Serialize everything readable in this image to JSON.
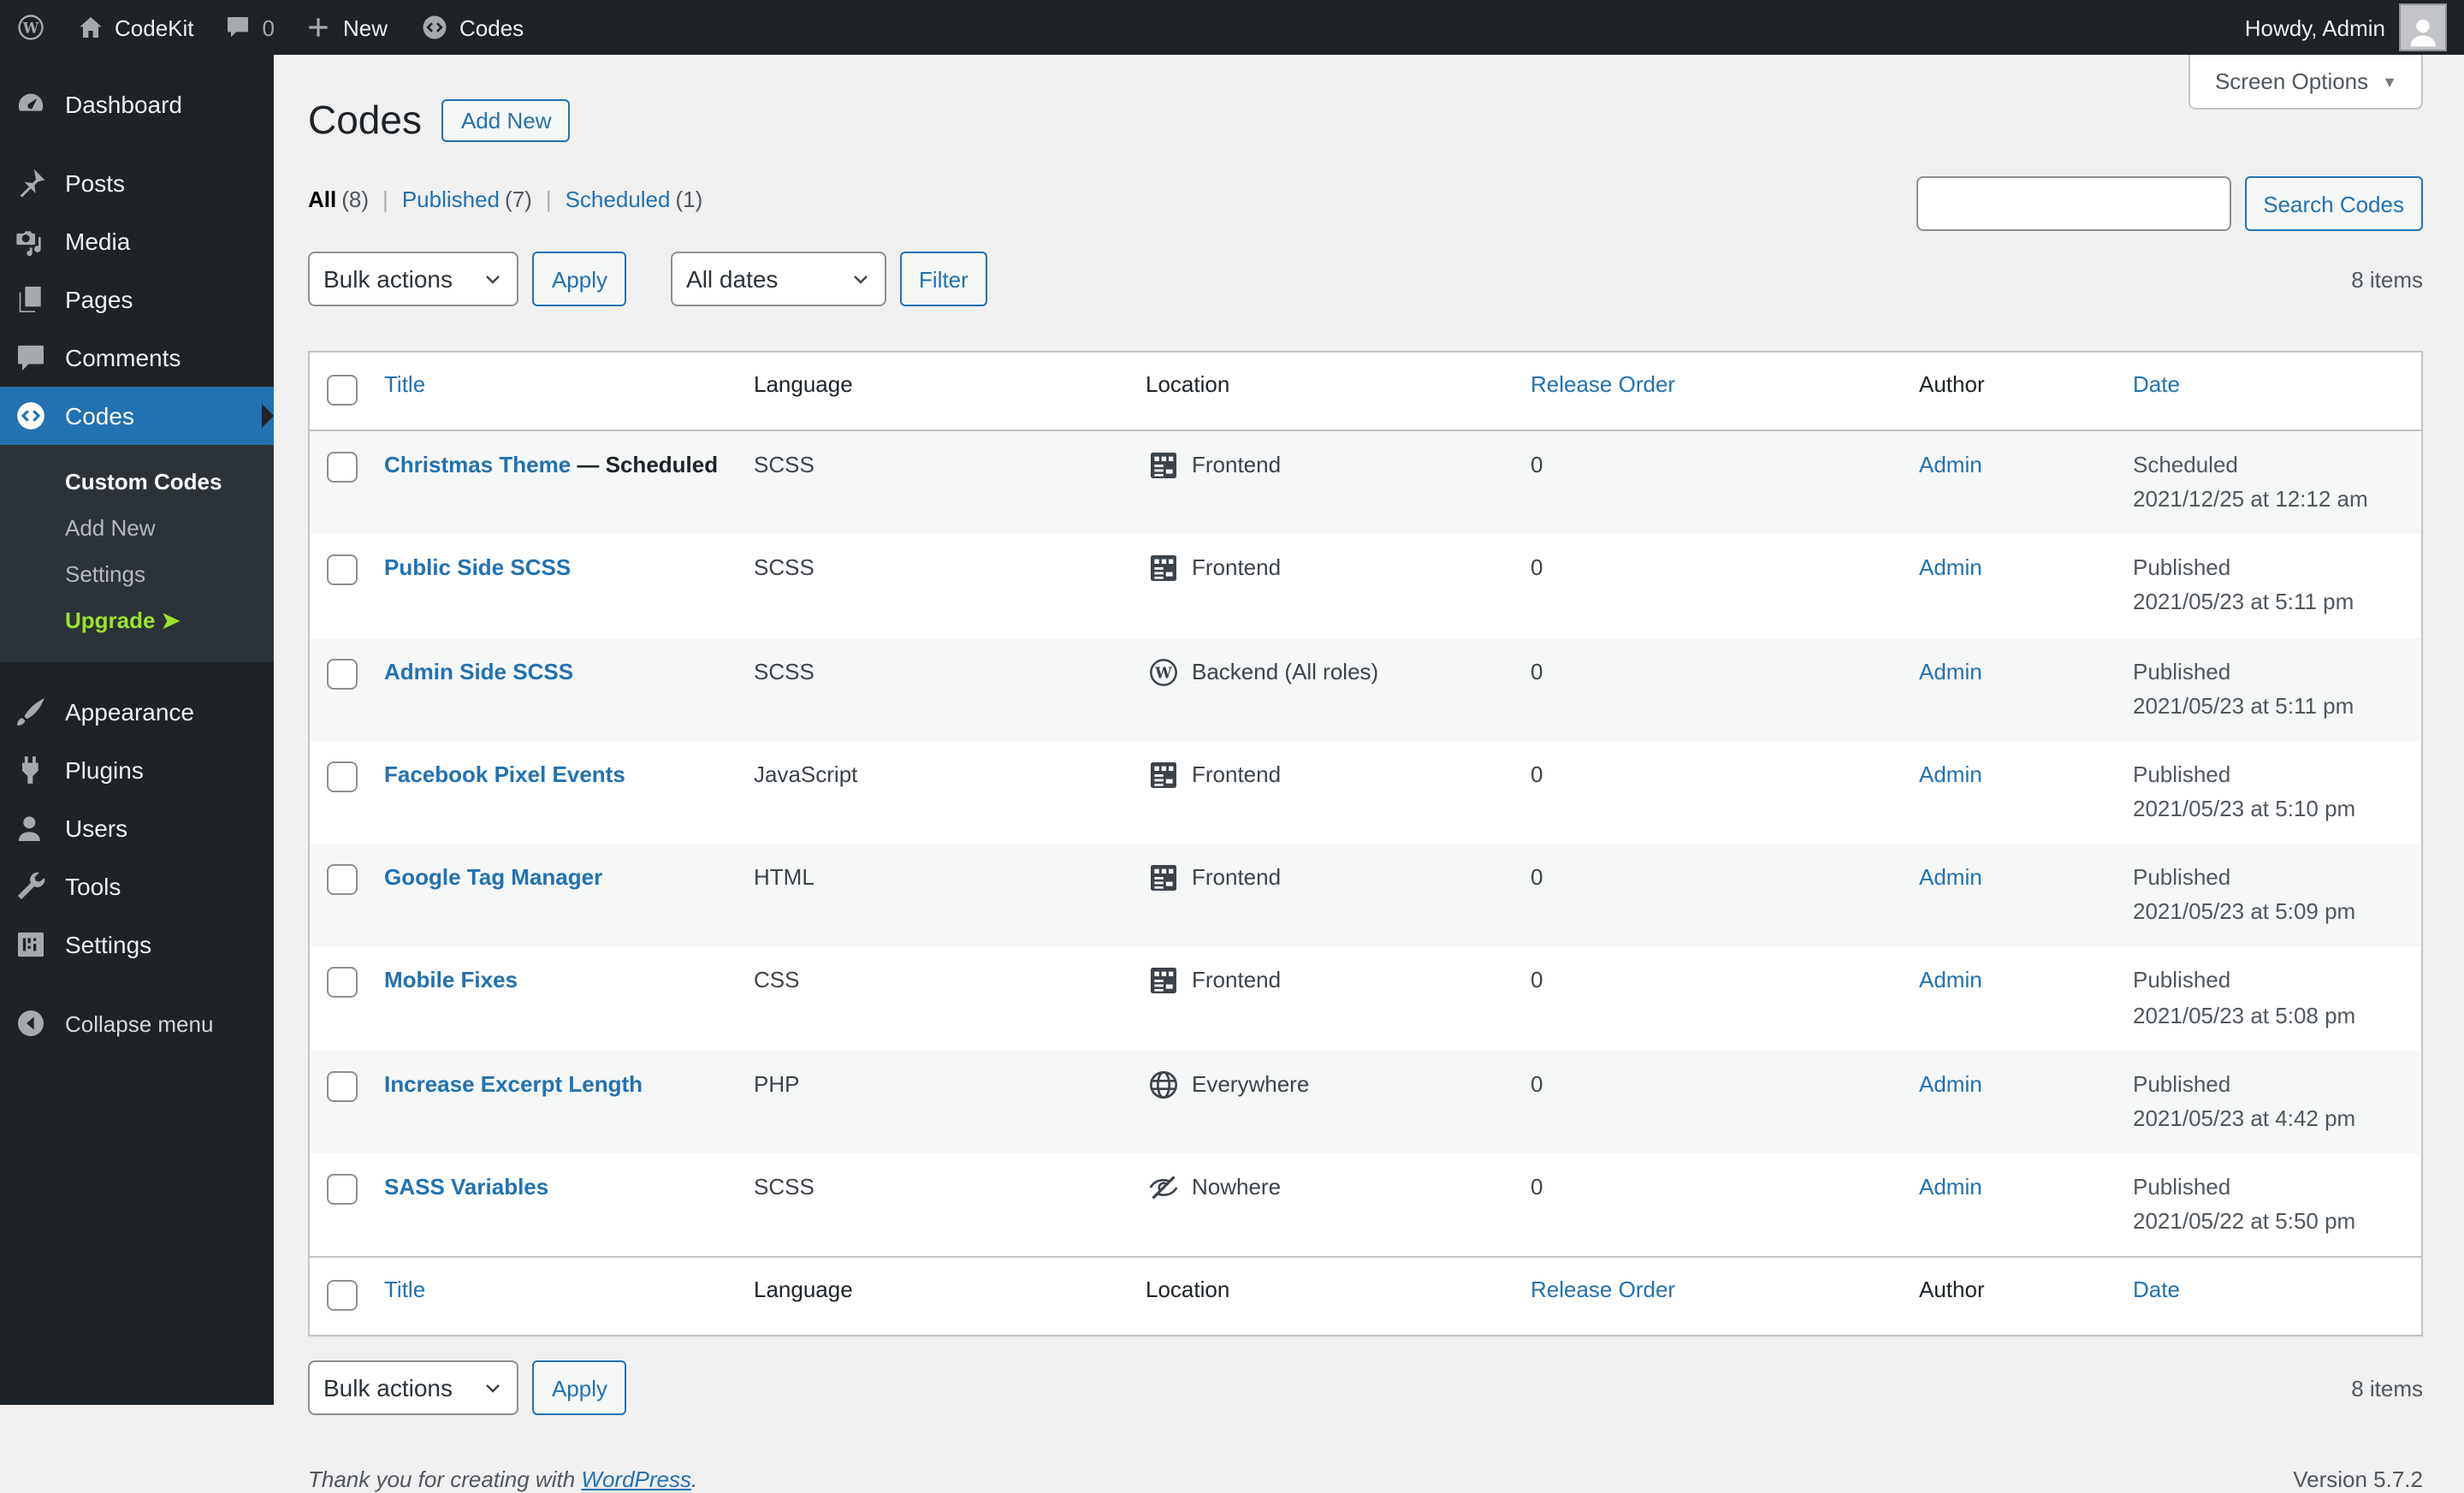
{
  "colors": {
    "accent": "#2271b1",
    "adminbar_bg": "#1d2327",
    "submenu_bg": "#2c3338",
    "content_bg": "#f0f0f1",
    "stripe": "#f6f7f7",
    "upgrade_green": "#9ce22e"
  },
  "admin_bar": {
    "site_name": "CodeKit",
    "comments_count": "0",
    "new_label": "New",
    "codes_label": "Codes",
    "howdy": "Howdy, Admin"
  },
  "sidebar": {
    "menu": [
      {
        "type": "item",
        "label": "Dashboard",
        "icon": "dashboard-icon"
      },
      {
        "type": "separator"
      },
      {
        "type": "item",
        "label": "Posts",
        "icon": "pushpin-icon"
      },
      {
        "type": "item",
        "label": "Media",
        "icon": "media-icon"
      },
      {
        "type": "item",
        "label": "Pages",
        "icon": "pages-icon"
      },
      {
        "type": "item",
        "label": "Comments",
        "icon": "comments-icon"
      },
      {
        "type": "item",
        "label": "Codes",
        "icon": "code-icon",
        "active": true,
        "submenu": [
          {
            "label": "Custom Codes",
            "current": true
          },
          {
            "label": "Add New"
          },
          {
            "label": "Settings"
          },
          {
            "label": "Upgrade",
            "highlight": true,
            "arrow": "➤"
          }
        ]
      },
      {
        "type": "separator"
      },
      {
        "type": "item",
        "label": "Appearance",
        "icon": "appearance-icon"
      },
      {
        "type": "item",
        "label": "Plugins",
        "icon": "plugins-icon"
      },
      {
        "type": "item",
        "label": "Users",
        "icon": "users-icon"
      },
      {
        "type": "item",
        "label": "Tools",
        "icon": "tools-icon"
      },
      {
        "type": "item",
        "label": "Settings",
        "icon": "settings-icon"
      },
      {
        "type": "separator"
      },
      {
        "type": "item",
        "label": "Collapse menu",
        "icon": "collapse-icon",
        "collapse": true
      }
    ]
  },
  "screen_options_label": "Screen Options",
  "page": {
    "title": "Codes",
    "add_new_label": "Add New",
    "filters": [
      {
        "label": "All",
        "count": "(8)",
        "current": true
      },
      {
        "label": "Published",
        "count": "(7)"
      },
      {
        "label": "Scheduled",
        "count": "(1)"
      }
    ],
    "search_button": "Search Codes",
    "search_value": "",
    "items_count": "8 items"
  },
  "toolbar": {
    "bulk_actions_label": "Bulk actions",
    "apply_label": "Apply",
    "dates_filter_label": "All dates",
    "filter_label": "Filter"
  },
  "table": {
    "columns": [
      {
        "label": "Title",
        "sortable": true
      },
      {
        "label": "Language",
        "sortable": false
      },
      {
        "label": "Location",
        "sortable": false
      },
      {
        "label": "Release Order",
        "sortable": true
      },
      {
        "label": "Author",
        "sortable": false
      },
      {
        "label": "Date",
        "sortable": true
      }
    ],
    "rows": [
      {
        "title": "Christmas Theme",
        "title_suffix": " — Scheduled",
        "language": "SCSS",
        "location": {
          "icon": "frontend-layout-icon",
          "label": "Frontend"
        },
        "release_order": "0",
        "author": "Admin",
        "date_status": "Scheduled",
        "date_value": "2021/12/25 at 12:12 am"
      },
      {
        "title": "Public Side SCSS",
        "title_suffix": "",
        "language": "SCSS",
        "location": {
          "icon": "frontend-layout-icon",
          "label": "Frontend"
        },
        "release_order": "0",
        "author": "Admin",
        "date_status": "Published",
        "date_value": "2021/05/23 at 5:11 pm"
      },
      {
        "title": "Admin Side SCSS",
        "title_suffix": "",
        "language": "SCSS",
        "location": {
          "icon": "wordpress-logo-icon",
          "label": "Backend (All roles)"
        },
        "release_order": "0",
        "author": "Admin",
        "date_status": "Published",
        "date_value": "2021/05/23 at 5:11 pm"
      },
      {
        "title": "Facebook Pixel Events",
        "title_suffix": "",
        "language": "JavaScript",
        "location": {
          "icon": "frontend-layout-icon",
          "label": "Frontend"
        },
        "release_order": "0",
        "author": "Admin",
        "date_status": "Published",
        "date_value": "2021/05/23 at 5:10 pm"
      },
      {
        "title": "Google Tag Manager",
        "title_suffix": "",
        "language": "HTML",
        "location": {
          "icon": "frontend-layout-icon",
          "label": "Frontend"
        },
        "release_order": "0",
        "author": "Admin",
        "date_status": "Published",
        "date_value": "2021/05/23 at 5:09 pm"
      },
      {
        "title": "Mobile Fixes",
        "title_suffix": "",
        "language": "CSS",
        "location": {
          "icon": "frontend-layout-icon",
          "label": "Frontend"
        },
        "release_order": "0",
        "author": "Admin",
        "date_status": "Published",
        "date_value": "2021/05/23 at 5:08 pm"
      },
      {
        "title": "Increase Excerpt Length",
        "title_suffix": "",
        "language": "PHP",
        "location": {
          "icon": "globe-icon",
          "label": "Everywhere"
        },
        "release_order": "0",
        "author": "Admin",
        "date_status": "Published",
        "date_value": "2021/05/23 at 4:42 pm"
      },
      {
        "title": "SASS Variables",
        "title_suffix": "",
        "language": "SCSS",
        "location": {
          "icon": "hidden-eye-icon",
          "label": "Nowhere"
        },
        "release_order": "0",
        "author": "Admin",
        "date_status": "Published",
        "date_value": "2021/05/22 at 5:50 pm"
      }
    ]
  },
  "footer": {
    "thank_you_prefix": "Thank you for creating with ",
    "wordpress_link": "WordPress",
    "thank_you_suffix": ".",
    "version": "Version 5.7.2",
    "items_count": "8 items"
  }
}
